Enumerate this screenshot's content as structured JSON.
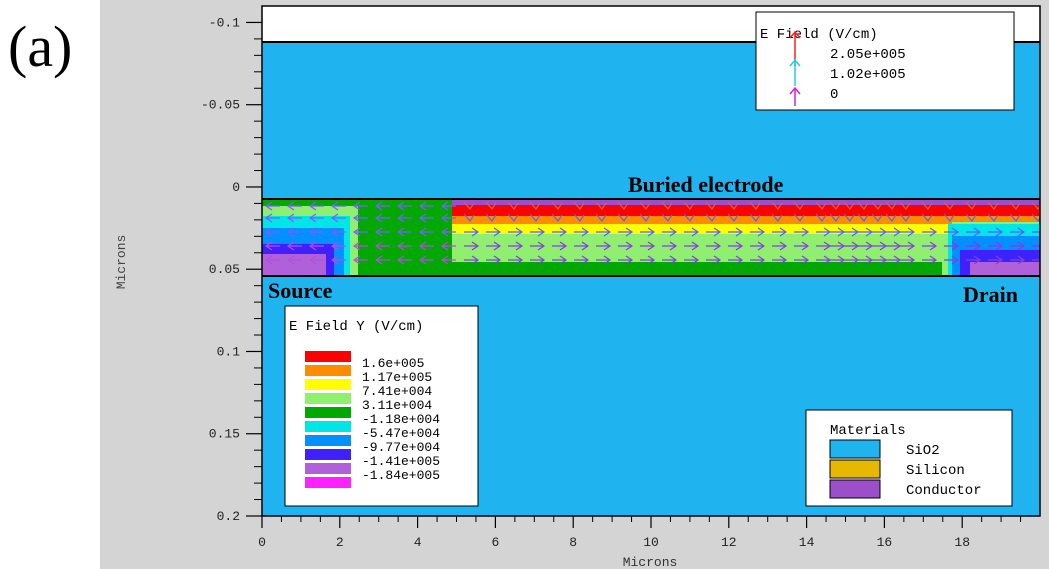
{
  "panel_label": "(a)",
  "colors": {
    "oxide": "#1fb4f0",
    "silicon": "#e6b800",
    "conductor": "#9b4fc8",
    "frame_bg": "#d4d4d4"
  },
  "chart_data": {
    "type": "heatmap",
    "title": "",
    "xlabel": "Microns",
    "ylabel": "Microns",
    "xlim": [
      0,
      20
    ],
    "ylim": [
      -0.11,
      0.2
    ],
    "y_inverted": true,
    "x_ticks": [
      0,
      2,
      4,
      6,
      8,
      10,
      12,
      14,
      16,
      18
    ],
    "y_ticks": [
      -0.1,
      -0.05,
      0,
      0.05,
      0.1,
      0.15,
      0.2
    ],
    "y_tick_labels": [
      "-0.1",
      "-0.05",
      "0",
      "0.05",
      "0.1",
      "0.15",
      "0.2"
    ],
    "annotations": {
      "buried_electrode": "Buried electrode",
      "source": "Source",
      "drain": "Drain"
    },
    "ey_legend": {
      "title": "E Field Y (V/cm)",
      "levels": [
        {
          "label": "1.6e+005",
          "color": "#ff0000"
        },
        {
          "label": "1.17e+005",
          "color": "#ff8c00"
        },
        {
          "label": "7.41e+004",
          "color": "#ffff00"
        },
        {
          "label": "3.11e+004",
          "color": "#90ee70"
        },
        {
          "label": "-1.18e+004",
          "color": "#00a800"
        },
        {
          "label": "-5.47e+004",
          "color": "#00e6e6"
        },
        {
          "label": "-9.77e+004",
          "color": "#0090ff"
        },
        {
          "label": "-1.41e+005",
          "color": "#4020ff"
        },
        {
          "label": "-1.84e+005",
          "color": "#b060d8"
        },
        {
          "label": "",
          "color": "#ff20ff"
        }
      ]
    },
    "efield_legend": {
      "title": "E Field (V/cm)",
      "entries": [
        {
          "label": "2.05e+005",
          "color": "#ff2020"
        },
        {
          "label": "1.02e+005",
          "color": "#20d0e0"
        },
        {
          "label": "0",
          "color": "#d020d0"
        }
      ]
    },
    "materials_legend": {
      "title": "Materials",
      "entries": [
        {
          "label": "SiO2",
          "color": "#1fb4f0"
        },
        {
          "label": "Silicon",
          "color": "#e6b800"
        },
        {
          "label": "Conductor",
          "color": "#9b4fc8"
        }
      ]
    }
  }
}
